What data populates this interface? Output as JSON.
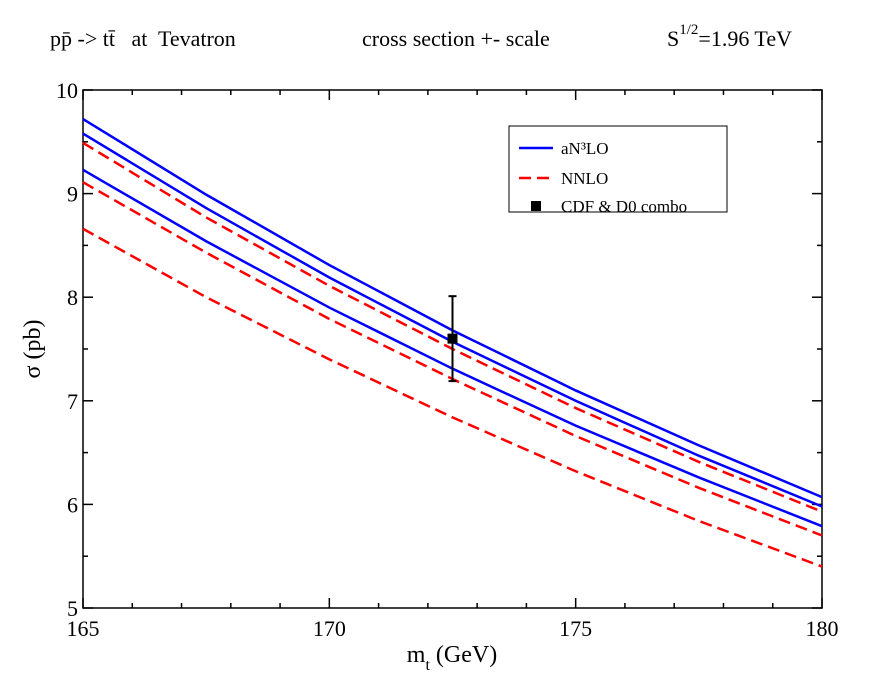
{
  "chart_data": {
    "type": "line",
    "title": [
      "pp̄ -> tt̄   at  Tevatron",
      "cross section +- scale"
    ],
    "energy": {
      "base": "S",
      "sup": "1/2",
      "rest": "=1.96 TeV"
    },
    "x_label": {
      "base": "m",
      "sub": "t",
      "rest": " (GeV)"
    },
    "y_label": "σ (pb)",
    "x": [
      165,
      167.5,
      170,
      172.5,
      175,
      177.5,
      180
    ],
    "xlim": [
      165,
      180
    ],
    "xticks": [
      165,
      170,
      175,
      180
    ],
    "xminorticks": [
      166,
      167,
      168,
      169,
      171,
      172,
      173,
      174,
      176,
      177,
      178,
      179
    ],
    "ylim": [
      5,
      10
    ],
    "yticks": [
      5,
      6,
      7,
      8,
      9,
      10
    ],
    "yminorticks": [
      5.5,
      6.5,
      7.5,
      8.5,
      9.5
    ],
    "legend": "upper right",
    "series": [
      {
        "name": "aN³LO",
        "color": "#0000ff",
        "dashed": false,
        "curves": [
          [
            9.72,
            8.99,
            8.31,
            7.68,
            7.1,
            6.57,
            6.07
          ],
          [
            9.58,
            8.86,
            8.19,
            7.57,
            7.0,
            6.47,
            5.98
          ],
          [
            9.23,
            8.54,
            7.9,
            7.31,
            6.76,
            6.26,
            5.79
          ]
        ]
      },
      {
        "name": "NNLO",
        "color": "#ff0000",
        "dashed": true,
        "curves": [
          [
            9.49,
            8.77,
            8.11,
            7.5,
            6.93,
            6.41,
            5.93
          ],
          [
            9.11,
            8.43,
            7.79,
            7.21,
            6.66,
            6.16,
            5.7
          ],
          [
            8.66,
            8.0,
            7.4,
            6.84,
            6.32,
            5.84,
            5.4
          ]
        ]
      }
    ],
    "points": {
      "name": "CDF & D0 combo",
      "color": "#000000",
      "x": [
        172.5
      ],
      "values": [
        7.6
      ],
      "errors": [
        0.41
      ]
    }
  }
}
